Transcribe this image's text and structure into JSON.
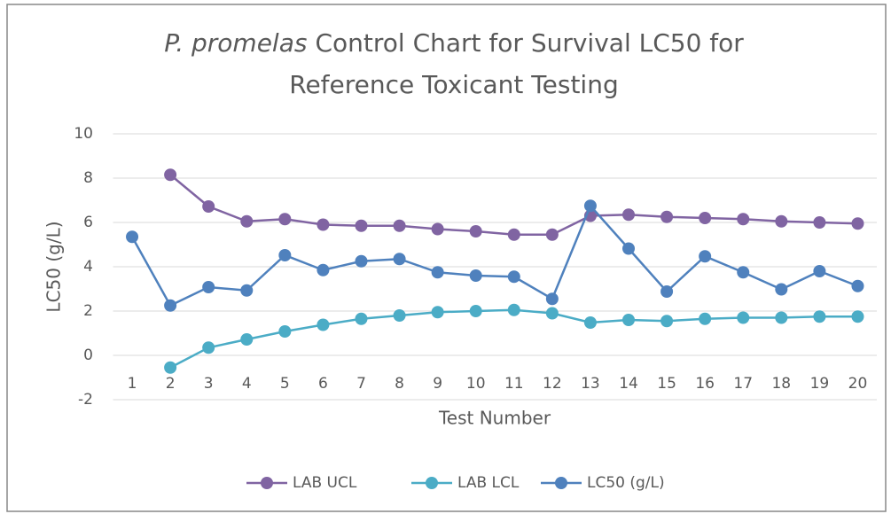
{
  "chart_data": {
    "type": "line",
    "title": [
      "P. promelas",
      "Control Chart for Survival LC50 for",
      "Reference Toxicant Testing"
    ],
    "x_label": "Test Number",
    "y_label": "LC50 (g/L)",
    "categories": [
      "1",
      "2",
      "3",
      "4",
      "5",
      "6",
      "7",
      "8",
      "9",
      "10",
      "11",
      "12",
      "13",
      "14",
      "15",
      "16",
      "17",
      "18",
      "19",
      "20"
    ],
    "series": [
      {
        "name": "LAB UCL",
        "color": "#8064a2",
        "values": [
          null,
          8.15,
          6.72,
          6.05,
          6.15,
          5.9,
          5.85,
          5.85,
          5.7,
          5.6,
          5.45,
          5.45,
          6.3,
          6.35,
          6.25,
          6.2,
          6.15,
          6.05,
          6.0,
          5.95
        ]
      },
      {
        "name": "LAB LCL",
        "color": "#4bacc6",
        "values": [
          null,
          -0.55,
          0.35,
          0.72,
          1.08,
          1.38,
          1.65,
          1.8,
          1.95,
          2.0,
          2.05,
          1.9,
          1.48,
          1.6,
          1.55,
          1.65,
          1.7,
          1.7,
          1.75,
          1.75
        ]
      },
      {
        "name": "LC50 (g/L)",
        "color": "#4f81bd",
        "values": [
          5.35,
          2.25,
          3.08,
          2.93,
          4.52,
          3.85,
          4.25,
          4.35,
          3.75,
          3.6,
          3.55,
          2.55,
          6.75,
          4.82,
          2.88,
          4.47,
          3.75,
          2.98,
          3.8,
          3.13
        ]
      }
    ],
    "ylim": [
      -2,
      10
    ],
    "yticks": [
      -2,
      0,
      2,
      4,
      6,
      8,
      10
    ],
    "grid": true,
    "legend": "bottom"
  }
}
